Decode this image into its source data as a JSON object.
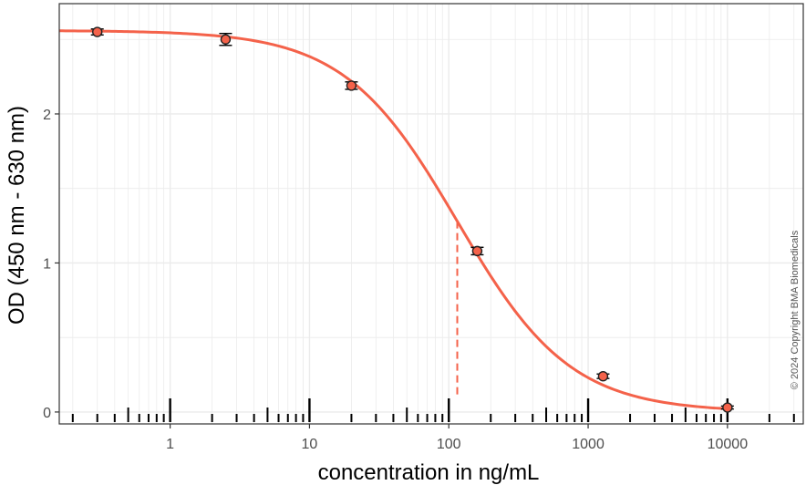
{
  "chart_data": {
    "type": "scatter",
    "xlabel": "concentration in ng/mL",
    "ylabel": "OD (450 nm - 630 nm)",
    "x_scale": "log10",
    "xlim": [
      0.16,
      35000
    ],
    "ylim": [
      -0.08,
      2.74
    ],
    "x_ticks": [
      1,
      10,
      100,
      1000,
      10000
    ],
    "x_tick_labels": [
      "1",
      "10",
      "100",
      "1000",
      "10000"
    ],
    "y_ticks": [
      0,
      1,
      2
    ],
    "y_tick_labels": [
      "0",
      "1",
      "2"
    ],
    "grid": true,
    "points": [
      {
        "x": 0.3,
        "y": 2.55,
        "err": 0.02
      },
      {
        "x": 2.5,
        "y": 2.5,
        "err": 0.04
      },
      {
        "x": 20,
        "y": 2.19,
        "err": 0.025
      },
      {
        "x": 160,
        "y": 1.08,
        "err": 0.025
      },
      {
        "x": 1280,
        "y": 0.24,
        "err": 0.015
      },
      {
        "x": 10000,
        "y": 0.03,
        "err": 0.01
      }
    ],
    "fit": {
      "model": "4PL",
      "top": 2.56,
      "bottom": 0.0,
      "ec50": 115,
      "hill": 1.07
    },
    "ec50_marker": {
      "x": 115,
      "style": "dashed"
    },
    "rug_ticks": true,
    "colors": {
      "curve": "#f4624a",
      "point_fill": "#f4624a",
      "point_stroke": "#222222",
      "grid": "#ebebeb",
      "panel_border": "#333333"
    }
  },
  "copyright": "© 2024 Copyright BMA Biomedicals"
}
